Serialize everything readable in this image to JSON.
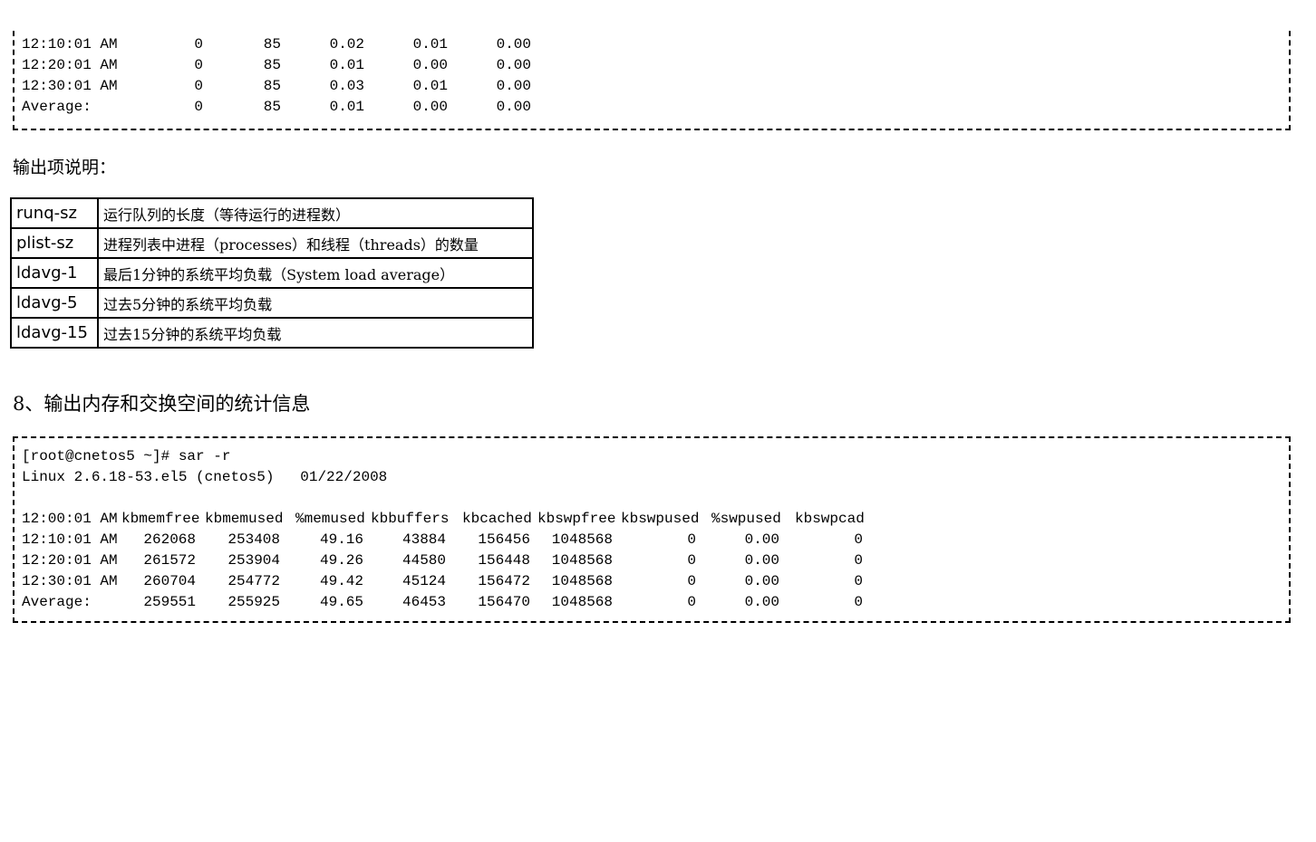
{
  "top_block": {
    "rows": [
      [
        "12:10:01 AM",
        "0",
        "85",
        "0.02",
        "0.01",
        "0.00"
      ],
      [
        "12:20:01 AM",
        "0",
        "85",
        "0.01",
        "0.00",
        "0.00"
      ],
      [
        "12:30:01 AM",
        "0",
        "85",
        "0.03",
        "0.01",
        "0.00"
      ],
      [
        "Average:",
        "0",
        "85",
        "0.01",
        "0.00",
        "0.00"
      ]
    ]
  },
  "caption": "输出项说明：",
  "items_table": [
    {
      "key": "runq-sz",
      "desc": "运行队列的长度（等待运行的进程数）"
    },
    {
      "key": "plist-sz",
      "desc": "进程列表中进程（processes）和线程（threads）的数量"
    },
    {
      "key": "ldavg-1",
      "desc": "最后1分钟的系统平均负载（System load average）"
    },
    {
      "key": "ldavg-5",
      "desc": "过去5分钟的系统平均负载"
    },
    {
      "key": "ldavg-15",
      "desc": "过去15分钟的系统平均负载"
    }
  ],
  "section_heading": "8、输出内存和交换空间的统计信息",
  "bottom_block": {
    "command": "[root@cnetos5 ~]# sar -r",
    "sysinfo": "Linux 2.6.18-53.el5 (cnetos5)   01/22/2008",
    "header": [
      "12:00:01 AM",
      "kbmemfree",
      "kbmemused",
      "%memused",
      "kbbuffers",
      "kbcached",
      "kbswpfree",
      "kbswpused",
      "%swpused",
      "kbswpcad"
    ],
    "rows": [
      [
        "12:10:01 AM",
        "262068",
        "253408",
        "49.16",
        "43884",
        "156456",
        "1048568",
        "0",
        "0.00",
        "0"
      ],
      [
        "12:20:01 AM",
        "261572",
        "253904",
        "49.26",
        "44580",
        "156448",
        "1048568",
        "0",
        "0.00",
        "0"
      ],
      [
        "12:30:01 AM",
        "260704",
        "254772",
        "49.42",
        "45124",
        "156472",
        "1048568",
        "0",
        "0.00",
        "0"
      ],
      [
        "Average:",
        "259551",
        "255925",
        "49.65",
        "46453",
        "156470",
        "1048568",
        "0",
        "0.00",
        "0"
      ]
    ]
  }
}
